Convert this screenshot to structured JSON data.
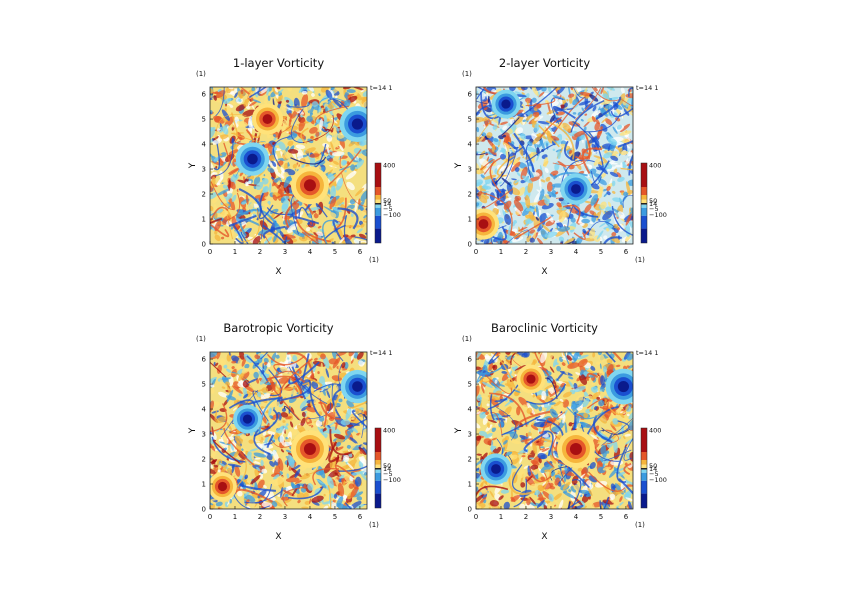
{
  "panels_label": "(1)",
  "chart_data": [
    {
      "type": "heatmap",
      "title": "1-layer Vorticity",
      "time_label": "t=14 1",
      "xlabel": "X",
      "ylabel": "Y",
      "x_unit": "(1)",
      "y_unit": "(1)",
      "xlim": [
        0,
        6.283
      ],
      "ylim": [
        0,
        6.283
      ],
      "x_ticks": [
        "0",
        "1",
        "2",
        "3",
        "4",
        "5",
        "6"
      ],
      "y_ticks": [
        "0",
        "1",
        "2",
        "3",
        "4",
        "5",
        "6"
      ],
      "colorbar_labels": [
        "400",
        "50",
        "14",
        "−5",
        "−100"
      ],
      "background_tone": "yellow",
      "features": [
        {
          "kind": "vortex",
          "sign": "positive",
          "x": 4.0,
          "y": 2.35,
          "strength": 1.0
        },
        {
          "kind": "vortex",
          "sign": "negative",
          "x": 5.9,
          "y": 4.8,
          "strength": 0.9
        },
        {
          "kind": "vortex",
          "sign": "negative",
          "x": 1.7,
          "y": 3.4,
          "strength": 0.8
        },
        {
          "kind": "vortex",
          "sign": "positive",
          "x": 2.3,
          "y": 5.0,
          "strength": 0.7
        }
      ]
    },
    {
      "type": "heatmap",
      "title": "2-layer Vorticity",
      "time_label": "t=14 1",
      "xlabel": "X",
      "ylabel": "Y",
      "x_unit": "(1)",
      "y_unit": "(1)",
      "xlim": [
        0,
        6.283
      ],
      "ylim": [
        0,
        6.283
      ],
      "x_ticks": [
        "0",
        "1",
        "2",
        "3",
        "4",
        "5",
        "6"
      ],
      "y_ticks": [
        "0",
        "1",
        "2",
        "3",
        "4",
        "5",
        "6"
      ],
      "colorbar_labels": [
        "400",
        "50",
        "14",
        "−5",
        "−100"
      ],
      "background_tone": "mixed",
      "features": [
        {
          "kind": "vortex",
          "sign": "negative",
          "x": 4.0,
          "y": 2.2,
          "strength": 0.7
        },
        {
          "kind": "vortex",
          "sign": "positive",
          "x": 0.3,
          "y": 0.8,
          "strength": 0.7
        },
        {
          "kind": "vortex",
          "sign": "negative",
          "x": 1.2,
          "y": 5.6,
          "strength": 0.6
        }
      ]
    },
    {
      "type": "heatmap",
      "title": "Barotropic Vorticity",
      "time_label": "t=14 1",
      "xlabel": "X",
      "ylabel": "Y",
      "x_unit": "(1)",
      "y_unit": "(1)",
      "xlim": [
        0,
        6.283
      ],
      "ylim": [
        0,
        6.283
      ],
      "x_ticks": [
        "0",
        "1",
        "2",
        "3",
        "4",
        "5",
        "6"
      ],
      "y_ticks": [
        "0",
        "1",
        "2",
        "3",
        "4",
        "5",
        "6"
      ],
      "colorbar_labels": [
        "400",
        "50",
        "14",
        "−5",
        "−100"
      ],
      "background_tone": "yellow",
      "features": [
        {
          "kind": "vortex",
          "sign": "positive",
          "x": 4.0,
          "y": 2.4,
          "strength": 1.0
        },
        {
          "kind": "vortex",
          "sign": "negative",
          "x": 5.9,
          "y": 4.9,
          "strength": 0.8
        },
        {
          "kind": "vortex",
          "sign": "positive",
          "x": 0.5,
          "y": 0.9,
          "strength": 0.6
        },
        {
          "kind": "vortex",
          "sign": "negative",
          "x": 1.5,
          "y": 3.6,
          "strength": 0.6
        }
      ]
    },
    {
      "type": "heatmap",
      "title": "Baroclinic Vorticity",
      "time_label": "t=14 1",
      "xlabel": "X",
      "ylabel": "Y",
      "x_unit": "(1)",
      "y_unit": "(1)",
      "xlim": [
        0,
        6.283
      ],
      "ylim": [
        0,
        6.283
      ],
      "x_ticks": [
        "0",
        "1",
        "2",
        "3",
        "4",
        "5",
        "6"
      ],
      "y_ticks": [
        "0",
        "1",
        "2",
        "3",
        "4",
        "5",
        "6"
      ],
      "colorbar_labels": [
        "400",
        "50",
        "14",
        "−5",
        "−100"
      ],
      "background_tone": "yellow",
      "features": [
        {
          "kind": "vortex",
          "sign": "positive",
          "x": 4.0,
          "y": 2.4,
          "strength": 1.0
        },
        {
          "kind": "vortex",
          "sign": "negative",
          "x": 5.9,
          "y": 4.9,
          "strength": 0.9
        },
        {
          "kind": "vortex",
          "sign": "negative",
          "x": 0.8,
          "y": 1.6,
          "strength": 0.7
        },
        {
          "kind": "vortex",
          "sign": "positive",
          "x": 2.2,
          "y": 5.2,
          "strength": 0.6
        }
      ]
    }
  ],
  "colormap": [
    "#0a1a8c",
    "#1a4fd0",
    "#3b9be0",
    "#7fd6f0",
    "#ffffff",
    "#ffe27a",
    "#f6b53c",
    "#e5572a",
    "#a80f12"
  ]
}
